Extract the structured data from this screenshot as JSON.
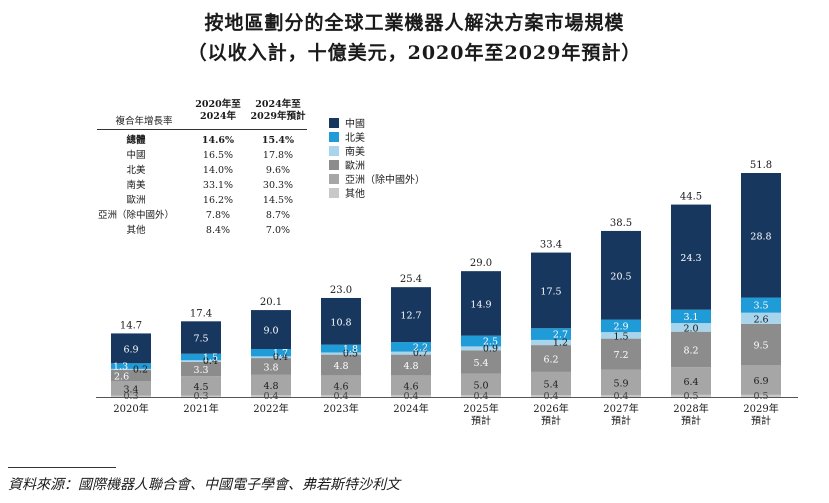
{
  "title": "按地區劃分的全球工業機器人解決方案市場規模",
  "subtitle": "（以收入計，十億美元，2020年至2029年預計）",
  "source": "資料來源：國際機器人聯合會、中國電子學會、弗若斯特沙利文",
  "cagr_table": {
    "header_label": "複合年增長率",
    "col1": [
      "2020年至",
      "2024年"
    ],
    "col2": [
      "2024年至",
      "2029年預計"
    ],
    "rows": [
      {
        "region": "總體",
        "a": "14.6%",
        "b": "15.4%",
        "bold": true
      },
      {
        "region": "中國",
        "a": "16.5%",
        "b": "17.8%"
      },
      {
        "region": "北美",
        "a": "14.0%",
        "b": "9.6%"
      },
      {
        "region": "南美",
        "a": "33.1%",
        "b": "30.3%"
      },
      {
        "region": "歐洲",
        "a": "16.2%",
        "b": "14.5%"
      },
      {
        "region": "亞洲（除中國外）",
        "a": "7.8%",
        "b": "8.7%"
      },
      {
        "region": "其他",
        "a": "8.4%",
        "b": "7.0%"
      }
    ]
  },
  "colors": {
    "china": "#17375e",
    "north_america": "#1f9bd7",
    "south_america": "#a8d4ec",
    "europe": "#8c8c8c",
    "asia": "#a6a6a6",
    "other": "#c8c8c8"
  },
  "chart_data": {
    "type": "bar",
    "stacked": true,
    "categories": [
      [
        "2020年"
      ],
      [
        "2021年"
      ],
      [
        "2022年"
      ],
      [
        "2023年"
      ],
      [
        "2024年"
      ],
      [
        "2025年",
        "預計"
      ],
      [
        "2026年",
        "預計"
      ],
      [
        "2027年",
        "預計"
      ],
      [
        "2028年",
        "預計"
      ],
      [
        "2029年",
        "預計"
      ]
    ],
    "totals": [
      "14.7",
      "17.4",
      "20.1",
      "23.0",
      "25.4",
      "29.0",
      "33.4",
      "38.5",
      "44.5",
      "51.8"
    ],
    "series": [
      {
        "name": "其他",
        "color_key": "other",
        "values": [
          0.3,
          0.3,
          0.4,
          0.4,
          0.4,
          0.4,
          0.4,
          0.4,
          0.5,
          0.5
        ],
        "labels": [
          "0.3",
          "0.3",
          "0.4",
          "0.4",
          "0.4",
          "0.4",
          "0.4",
          "0.4",
          "0.5",
          "0.5"
        ]
      },
      {
        "name": "亞洲（除中國外）",
        "color_key": "asia",
        "values": [
          3.4,
          4.5,
          4.8,
          4.6,
          4.6,
          5.0,
          5.4,
          5.9,
          6.4,
          6.9
        ],
        "labels": [
          "3.4",
          "4.5",
          "4.8",
          "4.6",
          "4.6",
          "5.0",
          "5.4",
          "5.9",
          "6.4",
          "6.9"
        ]
      },
      {
        "name": "歐洲",
        "color_key": "europe",
        "values": [
          2.6,
          3.3,
          3.8,
          4.8,
          4.8,
          5.4,
          6.2,
          7.2,
          8.2,
          9.5
        ],
        "labels": [
          "2.6",
          "3.3",
          "3.8",
          "4.8",
          "4.8",
          "5.4",
          "6.2",
          "7.2",
          "8.2",
          "9.5"
        ]
      },
      {
        "name": "南美",
        "color_key": "south_america",
        "values": [
          0.2,
          0.4,
          0.4,
          0.5,
          0.7,
          0.9,
          1.2,
          1.5,
          2.0,
          2.6
        ],
        "labels": [
          "0.2",
          "0.4",
          "0.4",
          "0.5",
          "0.7",
          "0.9",
          "1.2",
          "1.5",
          "2.0",
          "2.6"
        ]
      },
      {
        "name": "北美",
        "color_key": "north_america",
        "values": [
          1.3,
          1.5,
          1.7,
          1.8,
          2.2,
          2.5,
          2.7,
          2.9,
          3.1,
          3.5
        ],
        "labels": [
          "1.3",
          "1.5",
          "1.7",
          "1.8",
          "2.2",
          "2.5",
          "2.7",
          "2.9",
          "3.1",
          "3.5"
        ]
      },
      {
        "name": "中國",
        "color_key": "china",
        "values": [
          6.9,
          7.5,
          9.0,
          10.8,
          12.7,
          14.9,
          17.5,
          20.5,
          24.3,
          28.8
        ],
        "labels": [
          "6.9",
          "7.5",
          "9.0",
          "10.8",
          "12.7",
          "14.9",
          "17.5",
          "20.5",
          "24.3",
          "28.8"
        ]
      }
    ],
    "legend": {
      "position": "top-left",
      "order": [
        "中國",
        "北美",
        "南美",
        "歐洲",
        "亞洲（除中國外）",
        "其他"
      ]
    },
    "ylim": [
      0,
      52
    ]
  }
}
